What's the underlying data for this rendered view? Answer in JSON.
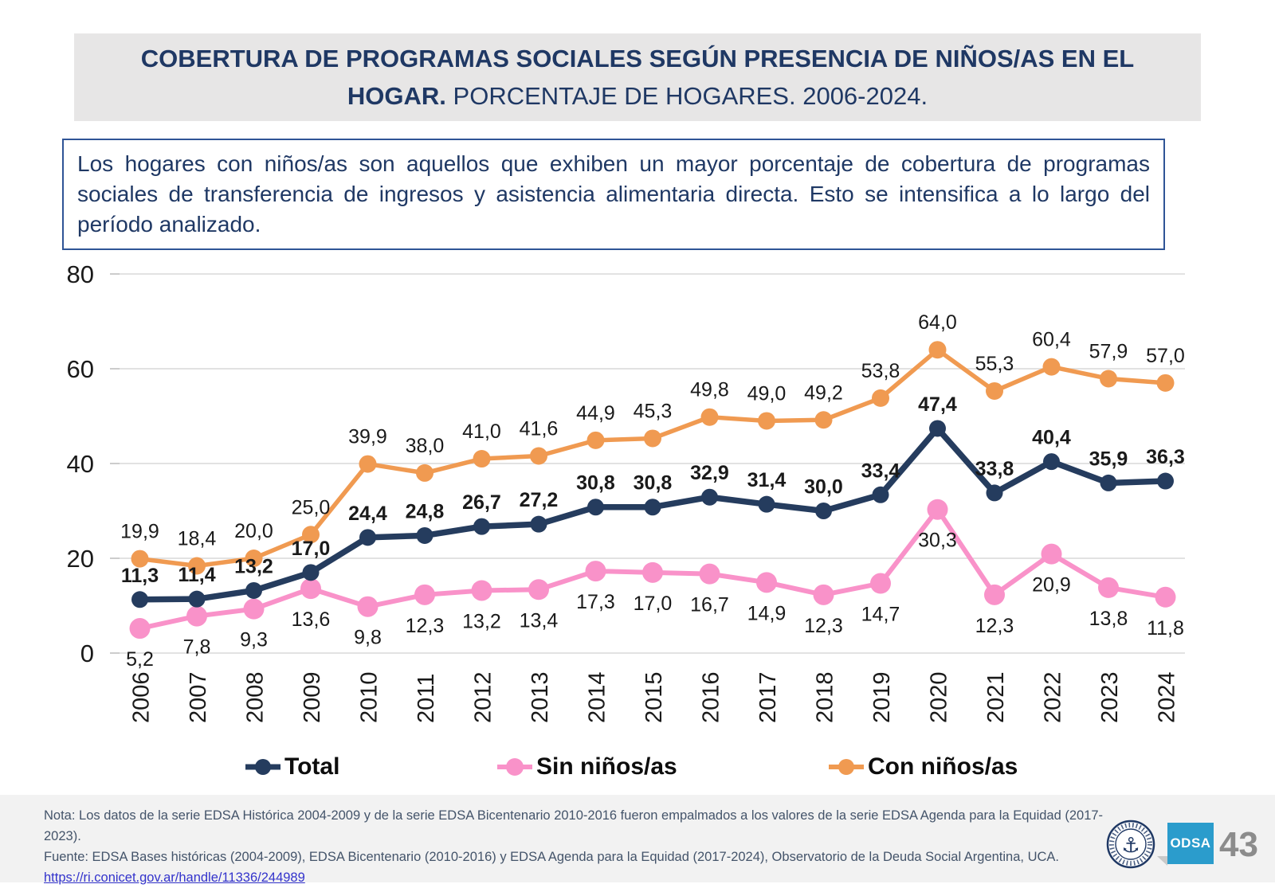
{
  "title": {
    "bold": "COBERTURA DE PROGRAMAS SOCIALES SEGÚN PRESENCIA DE NIÑOS/AS EN EL HOGAR.",
    "regular": "PORCENTAJE DE HOGARES. 2006-2024."
  },
  "summary": "Los hogares con niños/as son aquellos que exhiben un mayor porcentaje de cobertura de programas sociales de transferencia de ingresos y asistencia alimentaria directa. Esto se intensifica a lo largo del período analizado.",
  "chart_data": {
    "type": "line",
    "title": "",
    "xlabel": "",
    "ylabel": "",
    "ylim": [
      0,
      80
    ],
    "yticks": [
      0,
      20,
      40,
      60,
      80
    ],
    "grid": true,
    "legend_position": "bottom",
    "categories": [
      "2006",
      "2007",
      "2008",
      "2009",
      "2010",
      "2011",
      "2012",
      "2013",
      "2014",
      "2015",
      "2016",
      "2017",
      "2018",
      "2019",
      "2020",
      "2021",
      "2022",
      "2023",
      "2024"
    ],
    "series": [
      {
        "name": "Total",
        "color": "#253C5E",
        "values": [
          11.3,
          11.4,
          13.2,
          17.0,
          24.4,
          24.8,
          26.7,
          27.2,
          30.8,
          30.8,
          32.9,
          31.4,
          30.0,
          33.4,
          47.4,
          33.8,
          40.4,
          35.9,
          36.3
        ]
      },
      {
        "name": "Sin niños/as",
        "color": "#F992C9",
        "values": [
          5.2,
          7.8,
          9.3,
          13.6,
          9.8,
          12.3,
          13.2,
          13.4,
          17.3,
          17.0,
          16.7,
          14.9,
          12.3,
          14.7,
          30.3,
          12.3,
          20.9,
          13.8,
          11.8
        ]
      },
      {
        "name": "Con niños/as",
        "color": "#F09A51",
        "values": [
          19.9,
          18.4,
          20.0,
          25.0,
          39.9,
          38.0,
          41.0,
          41.6,
          44.9,
          45.3,
          49.8,
          49.0,
          49.2,
          53.8,
          64.0,
          55.3,
          60.4,
          57.9,
          57.0
        ]
      }
    ]
  },
  "footer": {
    "note": "Nota: Los datos de la serie EDSA Histórica 2004-2009 y de la serie EDSA Bicentenario 2010-2016 fueron empalmados a los valores de la serie EDSA Agenda para la Equidad (2017-2023).",
    "source": "Fuente: EDSA Bases históricas (2004-2009), EDSA Bicentenario (2010-2016) y EDSA Agenda para la Equidad (2017-2024), Observatorio de la Deuda Social Argentina, UCA.",
    "link": "https://ri.conicet.gov.ar/handle/11336/244989",
    "odsa_label": "ODSA",
    "page_number": "43"
  }
}
